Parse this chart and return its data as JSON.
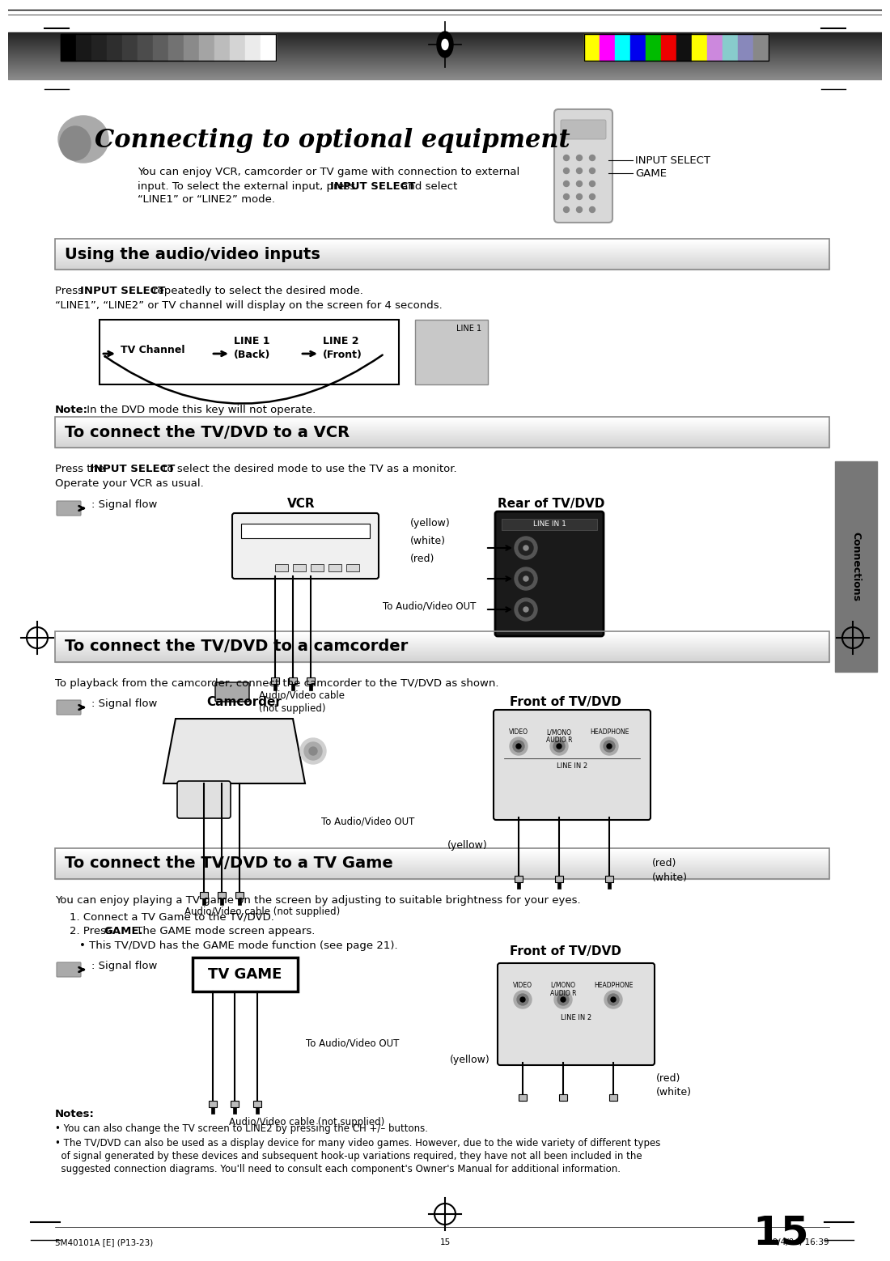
{
  "bg_color": "#ffffff",
  "title": "Connecting to optional equipment",
  "intro1": "You can enjoy VCR, camcorder or TV game with connection to external",
  "intro2": "input. To select the external input, press ",
  "intro2b": "INPUT SELECT",
  "intro2c": " and select",
  "intro3": "“LINE1” or “LINE2” mode.",
  "input_select": "INPUT SELECT",
  "game": "GAME",
  "sec1_title": "Using the audio/video inputs",
  "sec1_p1a": "Press ",
  "sec1_p1b": "INPUT SELECT",
  "sec1_p1c": " repeatedly to select the desired mode.",
  "sec1_p2": "“LINE1”, “LINE2” or TV channel will display on the screen for 4 seconds.",
  "flow_tv": "TV Channel",
  "flow_l1a": "LINE 1",
  "flow_l1b": "(Back)",
  "flow_l2a": "LINE 2",
  "flow_l2b": "(Front)",
  "line1_disp": "LINE 1",
  "note": "Note:",
  "note_text": " In the DVD mode this key will not operate.",
  "sec2_title": "To connect the TV/DVD to a VCR",
  "sec2_p1a": "Press the ",
  "sec2_p1b": "INPUT SELECT",
  "sec2_p1c": " to select the desired mode to use the TV as a monitor.",
  "sec2_p2": "Operate your VCR as usual.",
  "signal_flow": ": Signal flow",
  "vcr": "VCR",
  "rear": "Rear of TV/DVD",
  "yellow": "(yellow)",
  "white": "(white)",
  "red": "(red)",
  "to_audio": "To Audio/Video OUT",
  "cable1": "Audio/Video cable",
  "cable1b": "(not supplied)",
  "sec3_title": "To connect the TV/DVD to a camcorder",
  "sec3_p1": "To playback from the camcorder, connect the camcorder to the TV/DVD as shown.",
  "cam": "Camcorder",
  "front": "Front of TV/DVD",
  "cable2": "Audio/Video cable (not supplied)",
  "sec4_title": "To connect the TV/DVD to a TV Game",
  "sec4_p1": "You can enjoy playing a TV game on the screen by adjusting to suitable brightness for your eyes.",
  "sec4_s1": "1. Connect a TV Game to the TV/DVD.",
  "sec4_s2a": "2. Press ",
  "sec4_s2b": "GAME.",
  "sec4_s2c": " The GAME mode screen appears.",
  "sec4_s3": "• This TV/DVD has the GAME mode function (see page 21).",
  "tv_game": "TV GAME",
  "front2": "Front of TV/DVD",
  "cable3": "Audio/Video cable (not supplied)",
  "notes_hdr": "Notes:",
  "note1": "• You can also change the TV screen to LINE2 by pressing the CH +/– buttons.",
  "note2a": "• The TV/DVD can also be used as a display device for many video games. However, due to the wide variety of different types",
  "note2b": "  of signal generated by these devices and subsequent hook-up variations required, they have not all been included in the",
  "note2c": "  suggested connection diagrams. You'll need to consult each component's Owner's Manual for additional information.",
  "page": "15",
  "foot_l": "5M40101A [E] (P13-23)",
  "foot_c": "15",
  "foot_r": "20/4/04, 16:39",
  "sidebar": "Connections",
  "bw_bars": [
    "#000000",
    "#181818",
    "#222222",
    "#2e2e2e",
    "#3c3c3c",
    "#4c4c4c",
    "#5e5e5e",
    "#727272",
    "#8a8a8a",
    "#a4a4a4",
    "#bcbcbc",
    "#d4d4d4",
    "#ebebeb",
    "#ffffff"
  ],
  "color_bars": [
    "#ffff00",
    "#ff00ff",
    "#00ffff",
    "#0000ee",
    "#00bb00",
    "#ee0000",
    "#111111",
    "#ffff00",
    "#cc88dd",
    "#88cccc",
    "#8888bb",
    "#888888"
  ]
}
